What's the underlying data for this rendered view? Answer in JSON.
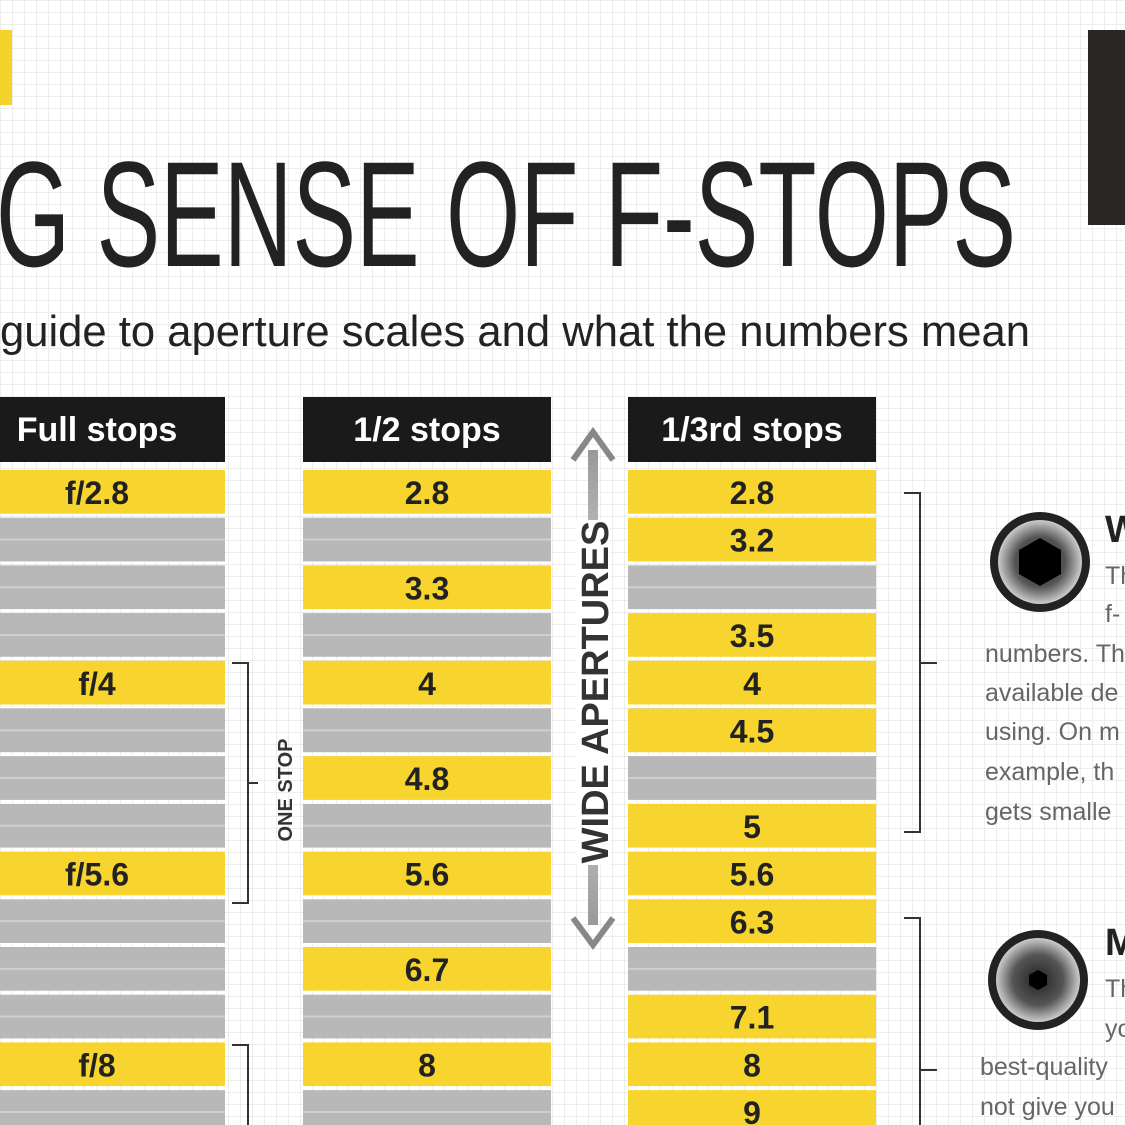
{
  "header": {
    "title": "G SENSE OF F-STOPS",
    "subtitle": "guide to aperture scales and what the numbers mean"
  },
  "table": {
    "columns": [
      {
        "header": "Full stops",
        "cells": [
          "f/2.8",
          null,
          null,
          null,
          "f/4",
          null,
          null,
          null,
          "f/5.6",
          null,
          null,
          null,
          "f/8",
          null
        ]
      },
      {
        "header": "1/2 stops",
        "cells": [
          "2.8",
          null,
          "3.3",
          null,
          "4",
          null,
          "4.8",
          null,
          "5.6",
          null,
          "6.7",
          null,
          "8",
          null
        ]
      },
      {
        "header": "1/3rd stops",
        "cells": [
          "2.8",
          "3.2",
          null,
          "3.5",
          "4",
          "4.5",
          null,
          "5",
          "5.6",
          "6.3",
          null,
          "7.1",
          "8",
          "9"
        ]
      }
    ]
  },
  "labels": {
    "bracket": "ONE STOP",
    "arrow": "WIDE APERTURES"
  },
  "sidebar": [
    {
      "heading": "W",
      "lines": [
        "Th",
        "f-",
        "numbers. Th",
        "available de",
        "using. On m",
        "example, th",
        "gets smalle"
      ]
    },
    {
      "heading": "M",
      "lines": [
        "Th",
        "yo",
        "best-quality",
        "not give you"
      ]
    }
  ]
}
